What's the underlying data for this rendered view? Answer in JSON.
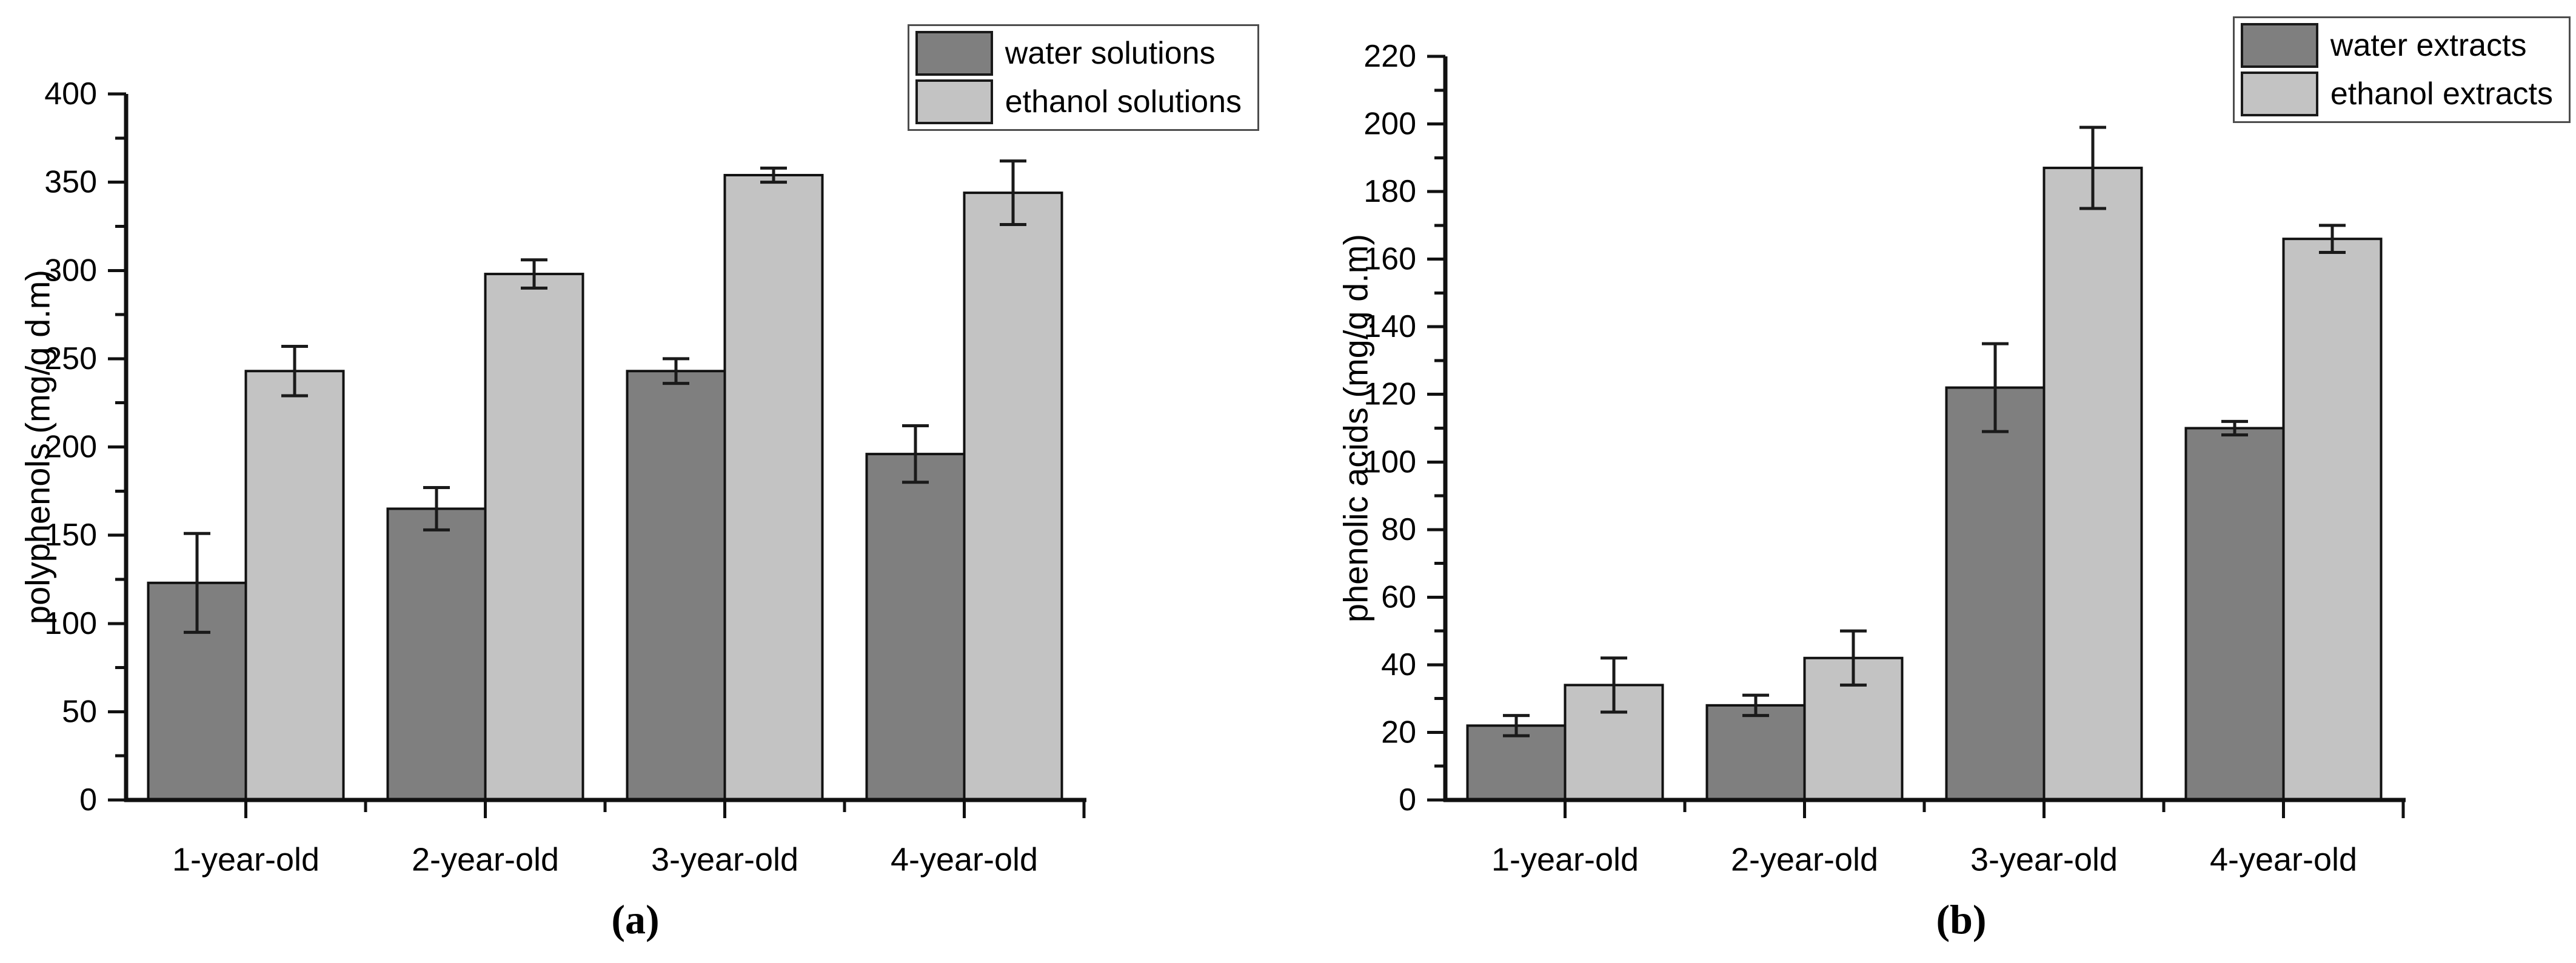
{
  "figure": {
    "panels": [
      {
        "id": "a",
        "label": "(a)"
      },
      {
        "id": "b",
        "label": "(b)"
      }
    ]
  },
  "colors": {
    "background": "#ffffff",
    "bar_dark": "#7f7f7f",
    "bar_light": "#c3c3c3",
    "bar_border": "#111111",
    "axis": "#111111",
    "error_bar": "#1a1a1a",
    "legend_border": "#4d4d4d",
    "text": "#000000"
  },
  "chart_data": [
    {
      "type": "bar",
      "panel": "a",
      "title": "",
      "categories": [
        "1-year-old",
        "2-year-old",
        "3-year-old",
        "4-year-old"
      ],
      "series": [
        {
          "name": "water solutions",
          "shade": "dark",
          "values": [
            123,
            165,
            243,
            196
          ],
          "errors": [
            28,
            12,
            7,
            16
          ]
        },
        {
          "name": "ethanol solutions",
          "shade": "light",
          "values": [
            243,
            298,
            354,
            344
          ],
          "errors": [
            14,
            8,
            4,
            18
          ]
        }
      ],
      "xlabel": "",
      "ylabel": "polyphenols (mg/g d.m)",
      "ylim": [
        0,
        400
      ],
      "ytick_major": 50,
      "ytick_minor": 25,
      "grid": false,
      "legend_position": "top-right",
      "error_bars": true
    },
    {
      "type": "bar",
      "panel": "b",
      "title": "",
      "categories": [
        "1-year-old",
        "2-year-old",
        "3-year-old",
        "4-year-old"
      ],
      "series": [
        {
          "name": "water extracts",
          "shade": "dark",
          "values": [
            22,
            28,
            122,
            110
          ],
          "errors": [
            3,
            3,
            13,
            2
          ]
        },
        {
          "name": "ethanol extracts",
          "shade": "light",
          "values": [
            34,
            42,
            187,
            166
          ],
          "errors": [
            8,
            8,
            12,
            4
          ]
        }
      ],
      "xlabel": "",
      "ylabel": "phenolic acids (mg/g d.m)",
      "ylim": [
        0,
        220
      ],
      "ytick_major": 20,
      "ytick_minor": 10,
      "grid": false,
      "legend_position": "top-right",
      "error_bars": true
    }
  ]
}
